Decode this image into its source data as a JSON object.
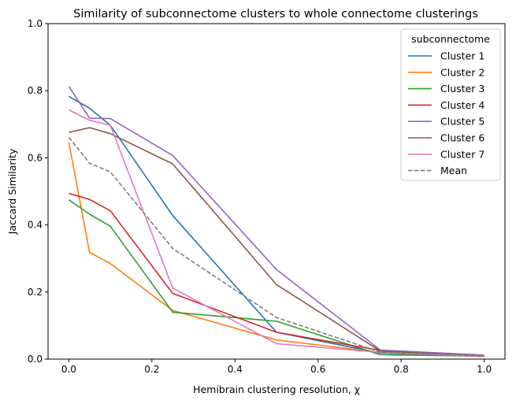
{
  "chart_data": {
    "type": "line",
    "title": "Similarity of subconnectome clusters to whole connectome clusterings",
    "xlabel": "Hemibrain clustering resolution, χ",
    "ylabel": "Jaccard Similarity",
    "xlim": [
      -0.05,
      1.05
    ],
    "ylim": [
      0,
      1.0
    ],
    "xticks": [
      0.0,
      0.2,
      0.4,
      0.6,
      0.8,
      1.0
    ],
    "xtick_labels": [
      "0.0",
      "0.2",
      "0.4",
      "0.6",
      "0.8",
      "1.0"
    ],
    "yticks": [
      0.0,
      0.2,
      0.4,
      0.6,
      0.8,
      1.0
    ],
    "ytick_labels": [
      "0.0",
      "0.2",
      "0.4",
      "0.6",
      "0.8",
      "1.0"
    ],
    "grid": false,
    "legend": {
      "title": "subconnectome",
      "placement": "top-right"
    },
    "x": [
      0.0,
      0.05,
      0.1,
      0.25,
      0.5,
      0.75,
      1.0
    ],
    "series": [
      {
        "name": "Cluster 1",
        "color": "#1f77b4",
        "dash": "solid",
        "values": [
          0.783,
          0.748,
          0.697,
          0.428,
          0.08,
          0.018,
          0.008
        ]
      },
      {
        "name": "Cluster 2",
        "color": "#ff7f0e",
        "dash": "solid",
        "values": [
          0.646,
          0.318,
          0.285,
          0.145,
          0.057,
          0.02,
          0.007
        ]
      },
      {
        "name": "Cluster 3",
        "color": "#2ca02c",
        "dash": "solid",
        "values": [
          0.475,
          0.432,
          0.396,
          0.14,
          0.113,
          0.013,
          0.009
        ]
      },
      {
        "name": "Cluster 4",
        "color": "#d62728",
        "dash": "solid",
        "values": [
          0.494,
          0.476,
          0.442,
          0.196,
          0.08,
          0.026,
          0.01
        ]
      },
      {
        "name": "Cluster 5",
        "color": "#9467bd",
        "dash": "solid",
        "values": [
          0.813,
          0.718,
          0.717,
          0.607,
          0.267,
          0.027,
          0.012
        ]
      },
      {
        "name": "Cluster 6",
        "color": "#8c564b",
        "dash": "solid",
        "values": [
          0.676,
          0.69,
          0.672,
          0.582,
          0.222,
          0.024,
          0.009
        ]
      },
      {
        "name": "Cluster 7",
        "color": "#e377c2",
        "dash": "solid",
        "values": [
          0.743,
          0.712,
          0.697,
          0.212,
          0.046,
          0.02,
          0.008
        ]
      },
      {
        "name": "Mean",
        "color": "#7f7f7f",
        "dash": "dashed",
        "values": [
          0.661,
          0.584,
          0.558,
          0.33,
          0.124,
          0.021,
          0.009
        ]
      }
    ]
  }
}
